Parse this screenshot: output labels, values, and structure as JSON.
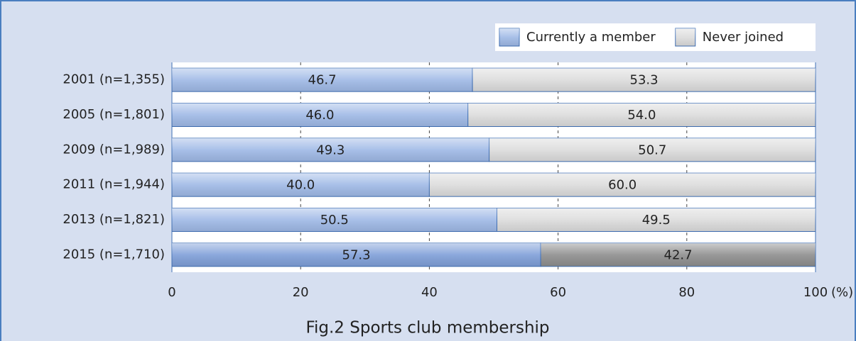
{
  "chart_data": {
    "type": "stacked_barh",
    "title": "Fig.2  Sports club membership",
    "categories": [
      "2001 (n=1,355)",
      "2005 (n=1,801)",
      "2009 (n=1,989)",
      "2011 (n=1,944)",
      "2013 (n=1,821)",
      "2015 (n=1,710)"
    ],
    "series": [
      {
        "name": "Currently a member",
        "color": "#9fb9e6",
        "colors": [
          "#9fb9e6",
          "#9fb9e6",
          "#9fb9e6",
          "#9fb9e6",
          "#9fb9e6",
          "#7f9fd8"
        ],
        "values": [
          46.7,
          46.0,
          49.3,
          40.0,
          50.5,
          57.3
        ],
        "value_labels": [
          "46.7",
          "46.0",
          "49.3",
          "40.0",
          "50.5",
          "57.3"
        ]
      },
      {
        "name": "Never joined",
        "color": "#dcdcdc",
        "colors": [
          "#dcdcdc",
          "#dcdcdc",
          "#dcdcdc",
          "#dcdcdc",
          "#dcdcdc",
          "#8e8e8e"
        ],
        "values": [
          53.3,
          54.0,
          50.7,
          60.0,
          49.5,
          42.7
        ],
        "value_labels": [
          "53.3",
          "54.0",
          "50.7",
          "60.0",
          "49.5",
          "42.7"
        ]
      }
    ],
    "xlim": [
      0,
      100
    ],
    "xticks": [
      0,
      20,
      40,
      60,
      80,
      100
    ],
    "x_unit": "(%)",
    "grid": true,
    "legend": "top-right"
  }
}
